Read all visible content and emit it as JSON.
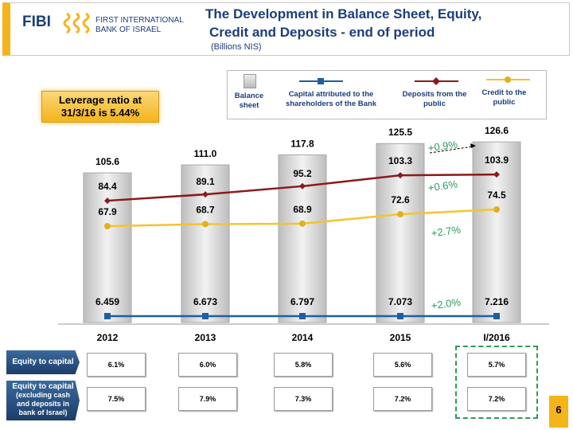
{
  "header": {
    "logo_short": "FIBI",
    "logo_line1": "FIRST INTERNATIONAL",
    "logo_line2": "BANK OF ISRAEL",
    "title_line1": "The Development  in Balance Sheet, Equity,",
    "title_line2": "Credit and Deposits - end of period",
    "subtitle": "(Billions NIS)"
  },
  "leverage": {
    "line1": "Leverage ratio at",
    "line2": "31/3/16 is 5.44%"
  },
  "chart_data": {
    "type": "bar",
    "categories": [
      "2012",
      "2013",
      "2014",
      "2015",
      "I/2016"
    ],
    "series": [
      {
        "name": "Balance sheet",
        "type": "bar",
        "values": [
          105.6,
          111.0,
          117.8,
          125.5,
          126.6
        ],
        "labels": [
          "105.6",
          "111.0",
          "117.8",
          "125.5",
          "126.6"
        ],
        "color": "#d9d9d9"
      },
      {
        "name": "Deposits from the public",
        "type": "line",
        "values": [
          84.4,
          89.1,
          95.2,
          103.3,
          103.9
        ],
        "labels": [
          "84.4",
          "89.1",
          "95.2",
          "103.3",
          "103.9"
        ],
        "color": "#8b1a1a"
      },
      {
        "name": "Credit to the public",
        "type": "line",
        "values": [
          67.9,
          68.7,
          68.9,
          72.6,
          74.5
        ],
        "labels": [
          "67.9",
          "68.7",
          "68.9",
          "72.6",
          "74.5"
        ],
        "color": "#f4c430"
      },
      {
        "name": "Capital attributed to the shareholders of the Bank",
        "type": "line",
        "values": [
          6.459,
          6.673,
          6.797,
          7.073,
          7.216
        ],
        "labels": [
          "6.459",
          "6.673",
          "6.797",
          "7.073",
          "7.216"
        ],
        "color": "#1f5fa0"
      }
    ],
    "annotations": [
      "+0.9%",
      "+0.6%",
      "+2.7%",
      "+2.0%"
    ],
    "legend_labels": {
      "balance": "Balance sheet",
      "capital": "Capital attributed to the shareholders of the Bank",
      "deposits": "Deposits from the public",
      "credit": "Credit to the public"
    }
  },
  "ratios": {
    "row1_label": "Equity to capital",
    "row2_label_1": "Equity to capital",
    "row2_label_2": "(excluding cash and deposits in bank of Israel)",
    "row1": [
      "6.1%",
      "6.0%",
      "5.8%",
      "5.6%",
      "5.7%"
    ],
    "row2": [
      "7.5%",
      "7.9%",
      "7.3%",
      "7.2%",
      "7.2%"
    ]
  },
  "page_number": "6"
}
